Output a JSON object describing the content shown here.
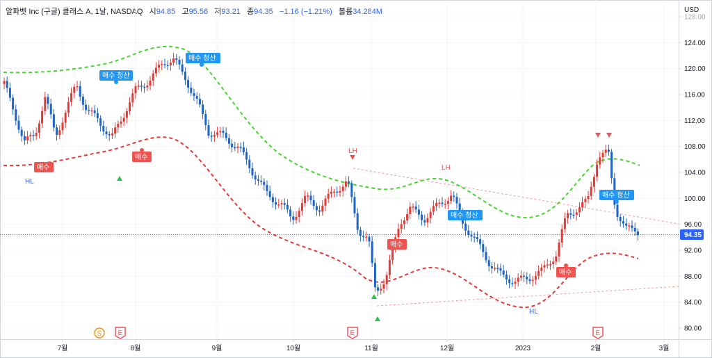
{
  "legend": {
    "title": "알파벳 Inc (구글) 클래스 A, 1날, NASDAQ",
    "open_label": "시",
    "open": "94.85",
    "high_label": "고",
    "high": "95.56",
    "low_label": "저",
    "low": "93.21",
    "close_label": "종",
    "close": "94.35",
    "change": "−1.16 (−1.21%)",
    "volume_label": "볼륨",
    "volume": "34.284M"
  },
  "price_axis": {
    "currency": "USD",
    "ticks": [
      "128.00",
      "124.00",
      "120.00",
      "116.00",
      "112.00",
      "108.00",
      "104.00",
      "100.00",
      "96.00",
      "92.00",
      "88.00",
      "84.00",
      "80.00"
    ],
    "current": "94.35"
  },
  "time_axis": {
    "ticks": [
      "7월",
      "8월",
      "9월",
      "10월",
      "11월",
      "12월",
      "2023",
      "2월",
      "3월"
    ]
  },
  "signals": {
    "buy": "매수",
    "buy_close": "매수 청산",
    "lh": "LH",
    "hl": "HL"
  },
  "markers": {
    "split": "S",
    "earnings": "E"
  },
  "colors": {
    "up": "#26a69a",
    "candle_up": "#e53935",
    "candle_down": "#1e63c9",
    "upper_band": "#44d62c",
    "lower_band": "#e53935",
    "accent": "#2196f3"
  }
}
